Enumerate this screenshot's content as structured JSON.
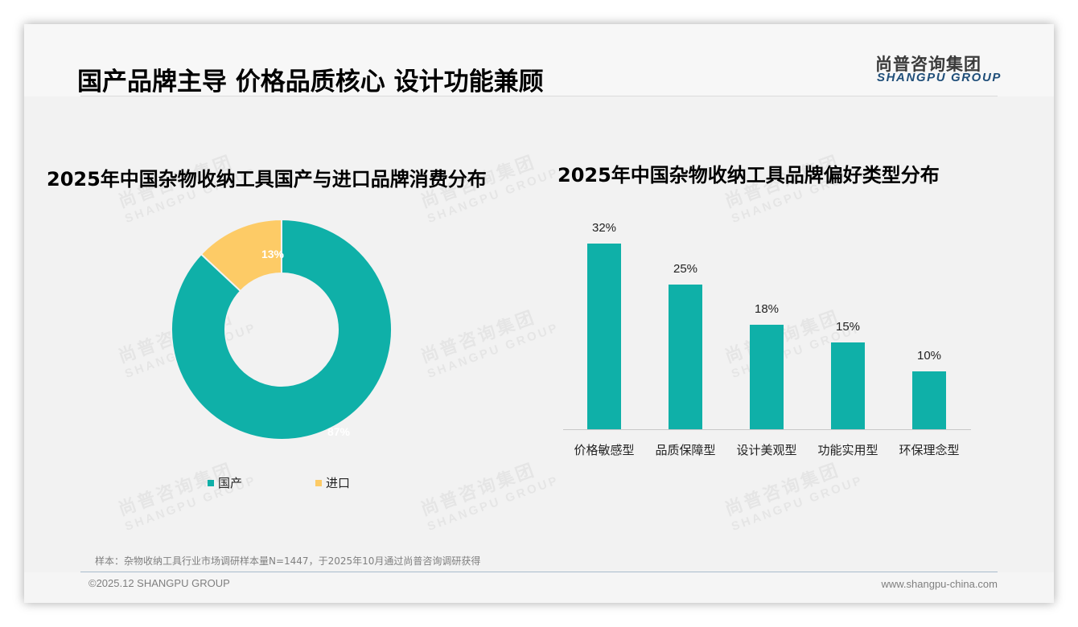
{
  "header": {
    "title": "国产品牌主导 价格品质核心 设计功能兼顾",
    "logo_cn": "尚普咨询集团",
    "logo_en": "SHANGPU GROUP"
  },
  "watermark": {
    "cn": "尚普咨询集团",
    "en": "SHANGPU GROUP"
  },
  "colors": {
    "teal": "#0fb0a8",
    "yellow": "#fdcb66",
    "logo_blue": "#1f4e79"
  },
  "left_chart": {
    "title": "2025年中国杂物收纳工具国产与进口品牌消费分布",
    "slices": [
      {
        "label": "国产",
        "value": 87,
        "display": "87%",
        "color": "#0fb0a8"
      },
      {
        "label": "进口",
        "value": 13,
        "display": "13%",
        "color": "#fdcb66"
      }
    ],
    "legend": [
      {
        "label": "国产",
        "color": "#0fb0a8"
      },
      {
        "label": "进口",
        "color": "#fdcb66"
      }
    ]
  },
  "right_chart": {
    "title": "2025年中国杂物收纳工具品牌偏好类型分布",
    "bars": [
      {
        "label": "价格敏感型",
        "value": 32,
        "display": "32%"
      },
      {
        "label": "品质保障型",
        "value": 25,
        "display": "25%"
      },
      {
        "label": "设计美观型",
        "value": 18,
        "display": "18%"
      },
      {
        "label": "功能实用型",
        "value": 15,
        "display": "15%"
      },
      {
        "label": "环保理念型",
        "value": 10,
        "display": "10%"
      }
    ]
  },
  "chart_data": [
    {
      "type": "pie",
      "subtype": "donut",
      "title": "2025年中国杂物收纳工具国产与进口品牌消费分布",
      "categories": [
        "国产",
        "进口"
      ],
      "values": [
        87,
        13
      ],
      "unit": "%",
      "colors": [
        "#0fb0a8",
        "#fdcb66"
      ],
      "legend_position": "bottom"
    },
    {
      "type": "bar",
      "title": "2025年中国杂物收纳工具品牌偏好类型分布",
      "categories": [
        "价格敏感型",
        "品质保障型",
        "设计美观型",
        "功能实用型",
        "环保理念型"
      ],
      "values": [
        32,
        25,
        18,
        15,
        10
      ],
      "unit": "%",
      "xlabel": "",
      "ylabel": "",
      "grid": false,
      "data_labels": true,
      "color": "#0fb0a8"
    }
  ],
  "footer": {
    "sample_note": "样本：杂物收纳工具行业市场调研样本量N=1447，于2025年10月通过尚普咨询调研获得",
    "copyright": "©2025.12 SHANGPU GROUP",
    "website": "www.shangpu-china.com"
  }
}
